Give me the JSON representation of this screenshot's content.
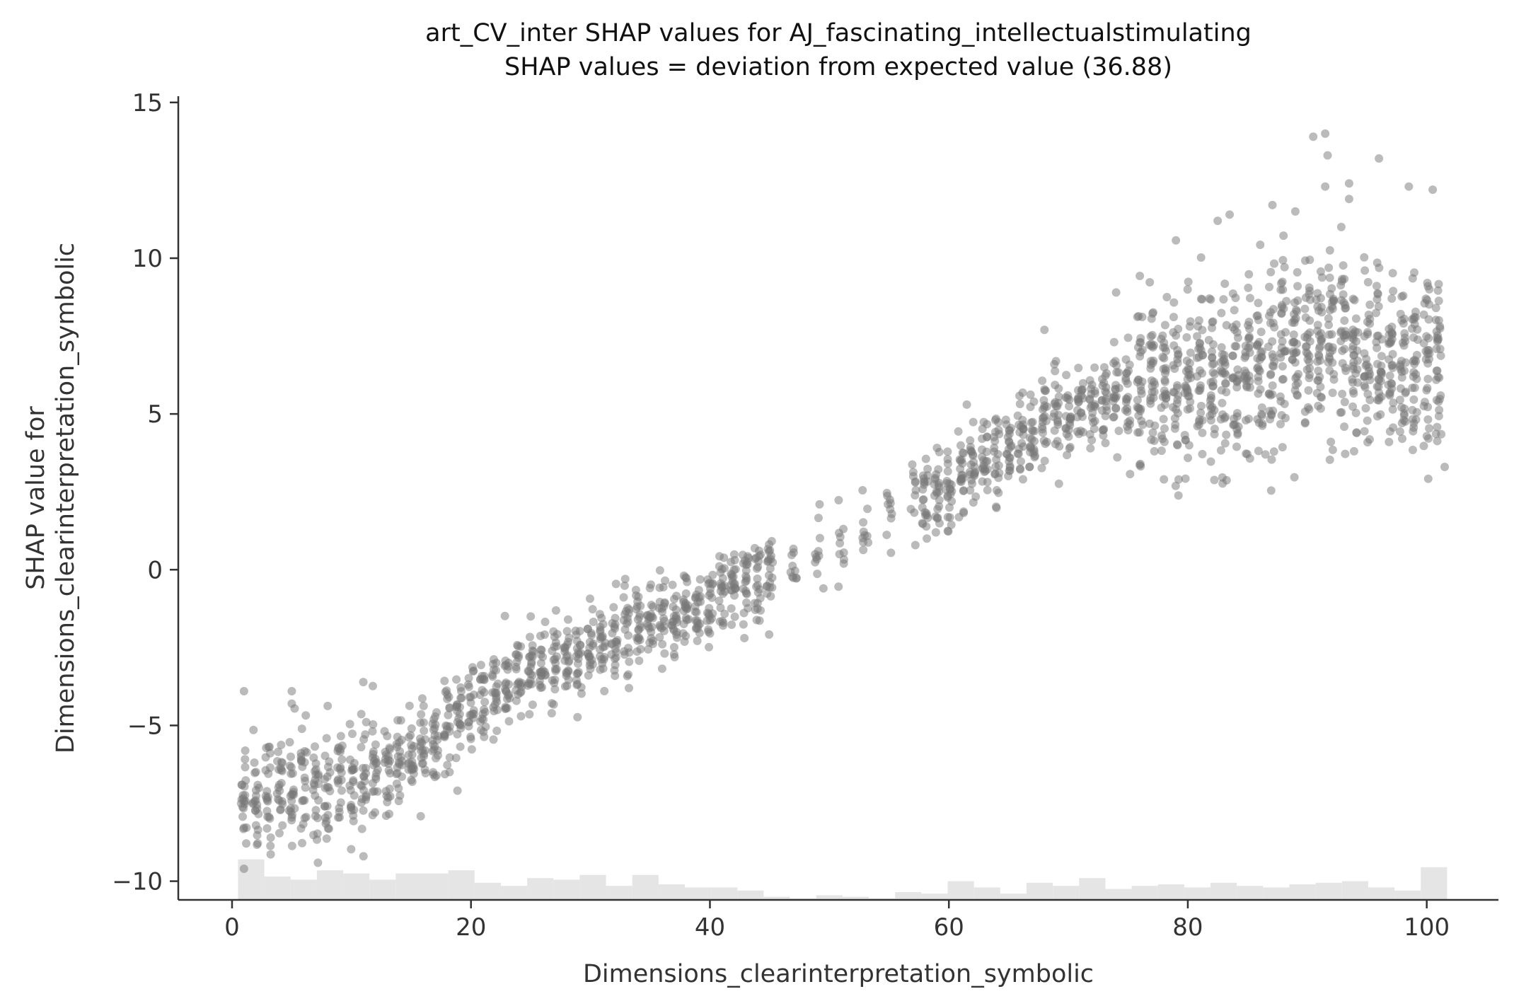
{
  "chart_data": {
    "type": "scatter",
    "title": "art_CV_inter SHAP values for AJ_fascinating_intellectualstimulating",
    "subtitle": "SHAP values = deviation from expected value (36.88)",
    "xlabel": "Dimensions_clearinterpretation_symbolic",
    "ylabel_line1": "SHAP value for",
    "ylabel_line2": "Dimensions_clearinterpretation_symbolic",
    "xlim": [
      -4.5,
      106
    ],
    "ylim": [
      -10.6,
      15.2
    ],
    "xticks": [
      0,
      20,
      40,
      60,
      80,
      100
    ],
    "xtick_labels": [
      "0",
      "20",
      "40",
      "60",
      "80",
      "100"
    ],
    "yticks": [
      -10,
      -5,
      0,
      5,
      10,
      15
    ],
    "ytick_labels": [
      "−10",
      "−5",
      "0",
      "5",
      "10",
      "15"
    ],
    "grid": false,
    "point_color": "#777777",
    "histogram_color": "#e5e5e5",
    "trend": [
      {
        "x": 1,
        "y": -7.2
      },
      {
        "x": 5,
        "y": -7.1
      },
      {
        "x": 10,
        "y": -6.8
      },
      {
        "x": 15,
        "y": -5.8
      },
      {
        "x": 20,
        "y": -4.5
      },
      {
        "x": 25,
        "y": -3.3
      },
      {
        "x": 30,
        "y": -2.6
      },
      {
        "x": 35,
        "y": -1.9
      },
      {
        "x": 40,
        "y": -1.0
      },
      {
        "x": 45,
        "y": -0.1
      },
      {
        "x": 50,
        "y": 0.6
      },
      {
        "x": 55,
        "y": 1.6
      },
      {
        "x": 60,
        "y": 2.8
      },
      {
        "x": 65,
        "y": 3.9
      },
      {
        "x": 70,
        "y": 5.1
      },
      {
        "x": 75,
        "y": 5.7
      },
      {
        "x": 80,
        "y": 6.1
      },
      {
        "x": 85,
        "y": 6.7
      },
      {
        "x": 90,
        "y": 7.3
      },
      {
        "x": 95,
        "y": 6.8
      },
      {
        "x": 101,
        "y": 6.6
      }
    ],
    "highlight_points": [
      {
        "x": 90.5,
        "y": 13.9
      },
      {
        "x": 91.5,
        "y": 14.0
      },
      {
        "x": 91.7,
        "y": 13.3
      },
      {
        "x": 96.0,
        "y": 13.2
      },
      {
        "x": 93.5,
        "y": 12.4
      },
      {
        "x": 91.5,
        "y": 12.3
      },
      {
        "x": 98.5,
        "y": 12.3
      },
      {
        "x": 100.5,
        "y": 12.2
      },
      {
        "x": 93.5,
        "y": 11.9
      },
      {
        "x": 83.5,
        "y": 11.4
      },
      {
        "x": 82.5,
        "y": 11.2
      },
      {
        "x": 89.0,
        "y": 11.5
      },
      {
        "x": 1.0,
        "y": -3.9
      },
      {
        "x": 5.0,
        "y": -3.9
      },
      {
        "x": 5.0,
        "y": -4.3
      },
      {
        "x": 11.0,
        "y": -9.2
      },
      {
        "x": 1.0,
        "y": -9.6
      },
      {
        "x": 25.0,
        "y": -1.5
      },
      {
        "x": 61.5,
        "y": 5.3
      },
      {
        "x": 68.0,
        "y": 7.7
      },
      {
        "x": 74.0,
        "y": 8.9
      },
      {
        "x": 49.5,
        "y": -0.6
      },
      {
        "x": 101.5,
        "y": 3.3
      },
      {
        "x": 86.5,
        "y": 3.7
      }
    ],
    "histogram": {
      "bin_edges_start": 0.5,
      "bin_width": 2.2,
      "heights_in_y_units": [
        1.3,
        0.75,
        0.65,
        0.95,
        0.85,
        0.65,
        0.85,
        0.85,
        0.95,
        0.55,
        0.45,
        0.7,
        0.65,
        0.8,
        0.45,
        0.8,
        0.5,
        0.4,
        0.4,
        0.3,
        0.1,
        0.05,
        0.15,
        0.1,
        0.05,
        0.25,
        0.2,
        0.6,
        0.4,
        0.2,
        0.55,
        0.45,
        0.7,
        0.35,
        0.45,
        0.5,
        0.4,
        0.55,
        0.45,
        0.4,
        0.5,
        0.55,
        0.6,
        0.4,
        0.3,
        1.05
      ]
    }
  }
}
